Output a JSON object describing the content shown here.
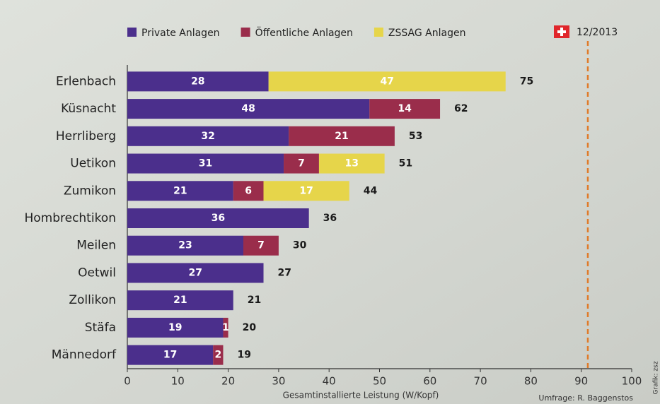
{
  "chart_data": {
    "type": "bar",
    "orientation": "horizontal",
    "stacked": true,
    "categories": [
      "Erlenbach",
      "Küsnacht",
      "Herrliberg",
      "Uetikon",
      "Zumikon",
      "Hombrechtikon",
      "Meilen",
      "Oetwil",
      "Zollikon",
      "Stäfa",
      "Männedorf"
    ],
    "series": [
      {
        "name": "Private Anlagen",
        "color": "#4b2f8c",
        "values": [
          28,
          48,
          32,
          31,
          21,
          36,
          23,
          27,
          21,
          19,
          17
        ]
      },
      {
        "name": "Öffentliche Anlagen",
        "color": "#9a2d4b",
        "values": [
          null,
          14,
          21,
          7,
          6,
          null,
          7,
          null,
          null,
          1,
          2
        ]
      },
      {
        "name": "ZSSAG Anlagen",
        "color": "#e6d54a",
        "values": [
          47,
          null,
          null,
          13,
          17,
          null,
          null,
          null,
          null,
          null,
          null
        ]
      }
    ],
    "totals": [
      75,
      62,
      53,
      51,
      44,
      36,
      30,
      27,
      21,
      20,
      19
    ],
    "xlim": [
      0,
      100
    ],
    "xticks": [
      0,
      10,
      20,
      30,
      40,
      50,
      60,
      70,
      80,
      90,
      100
    ],
    "xlabel": "Gesamtinstallierte Leistung (W/Kopf)",
    "reference_line": {
      "value": 91.3,
      "label": "12/2013",
      "color": "#e07b2a"
    },
    "source": "Umfrage: R. Baggenstos",
    "credit": "Grafik: zsz"
  }
}
